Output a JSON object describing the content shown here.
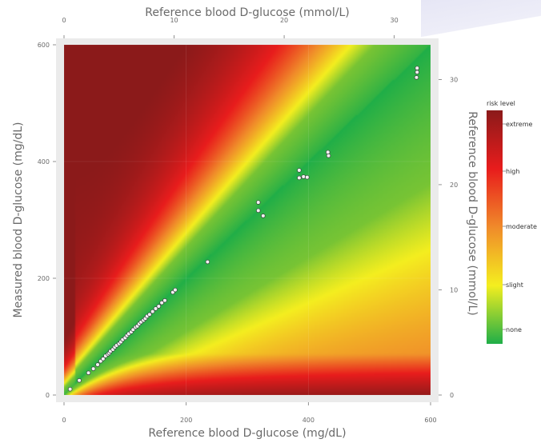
{
  "chart_data": {
    "type": "heatmap",
    "title": "",
    "xlabel": "Reference blood D-glucose (mg/dL)",
    "ylabel": "Measured blood D-glucose (mg/dL)",
    "x2label": "Reference blood D-glucose (mmol/L)",
    "y2label": "Reference blood D-glucose (mmol/L)",
    "xlim": [
      0,
      600
    ],
    "ylim": [
      0,
      600
    ],
    "x_ticks": [
      "0",
      "200",
      "400",
      "600"
    ],
    "y_ticks": [
      "0",
      "200",
      "400",
      "600"
    ],
    "x2_ticks": [
      "0",
      "10",
      "20",
      "30"
    ],
    "y2_ticks": [
      "0",
      "10",
      "20",
      "30"
    ],
    "grid": true,
    "legend": {
      "title": "risk level",
      "position": "right",
      "labels": [
        "extreme",
        "high",
        "moderate",
        "slight",
        "none"
      ],
      "colors": [
        "#8b1a1a",
        "#e81c1c",
        "#f08a2a",
        "#f4ee1f",
        "#1fae48"
      ]
    },
    "points": [
      [
        10,
        10
      ],
      [
        25,
        25
      ],
      [
        40,
        38
      ],
      [
        48,
        45
      ],
      [
        55,
        52
      ],
      [
        60,
        58
      ],
      [
        64,
        62
      ],
      [
        68,
        67
      ],
      [
        72,
        70
      ],
      [
        74,
        72
      ],
      [
        76,
        75
      ],
      [
        80,
        78
      ],
      [
        83,
        82
      ],
      [
        86,
        85
      ],
      [
        90,
        88
      ],
      [
        93,
        91
      ],
      [
        96,
        95
      ],
      [
        100,
        98
      ],
      [
        103,
        102
      ],
      [
        106,
        105
      ],
      [
        110,
        108
      ],
      [
        113,
        112
      ],
      [
        117,
        116
      ],
      [
        120,
        118
      ],
      [
        123,
        122
      ],
      [
        126,
        125
      ],
      [
        130,
        128
      ],
      [
        133,
        131
      ],
      [
        136,
        135
      ],
      [
        140,
        138
      ],
      [
        145,
        143
      ],
      [
        150,
        148
      ],
      [
        155,
        152
      ],
      [
        160,
        158
      ],
      [
        165,
        162
      ],
      [
        178,
        176
      ],
      [
        182,
        180
      ],
      [
        235,
        228
      ],
      [
        318,
        316
      ],
      [
        318,
        330
      ],
      [
        326,
        307
      ],
      [
        385,
        372
      ],
      [
        392,
        374
      ],
      [
        385,
        385
      ],
      [
        398,
        373
      ],
      [
        433,
        410
      ],
      [
        432,
        416
      ],
      [
        577,
        544
      ],
      [
        578,
        553
      ],
      [
        578,
        560
      ]
    ]
  }
}
